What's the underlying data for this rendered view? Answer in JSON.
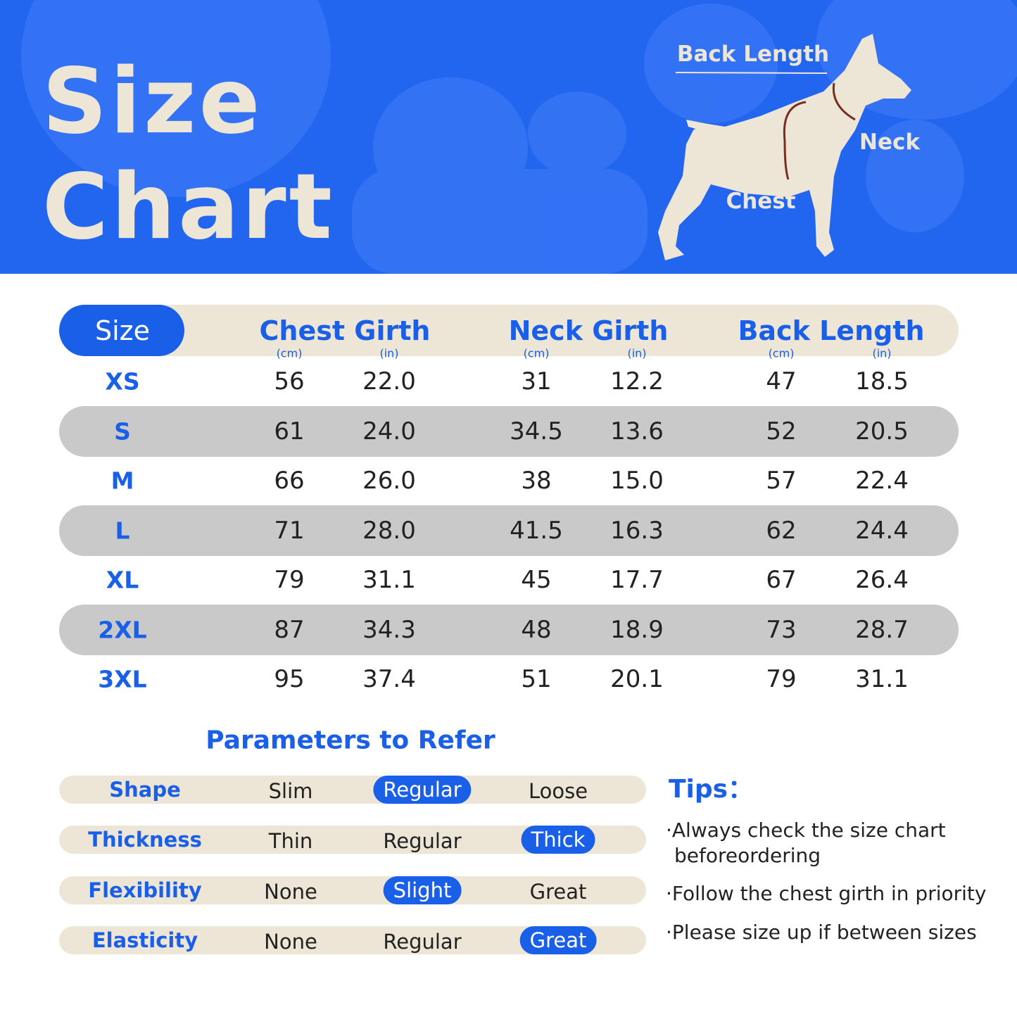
{
  "header": {
    "title_lines": [
      "Size",
      "Chart"
    ]
  },
  "diagram": {
    "back_length": "Back Length",
    "neck": "Neck",
    "chest": "Chest"
  },
  "table": {
    "size_header": "Size",
    "groups": [
      {
        "title": "Chest Girth",
        "units": [
          "(cm)",
          "(in)"
        ]
      },
      {
        "title": "Neck Girth",
        "units": [
          "(cm)",
          "(in)"
        ]
      },
      {
        "title": "Back Length",
        "units": [
          "(cm)",
          "(in)"
        ]
      }
    ],
    "rows": [
      [
        "XS",
        "56",
        "22.0",
        "31",
        "12.2",
        "47",
        "18.5"
      ],
      [
        "S",
        "61",
        "24.0",
        "34.5",
        "13.6",
        "52",
        "20.5"
      ],
      [
        "M",
        "66",
        "26.0",
        "38",
        "15.0",
        "57",
        "22.4"
      ],
      [
        "L",
        "71",
        "28.0",
        "41.5",
        "16.3",
        "62",
        "24.4"
      ],
      [
        "XL",
        "79",
        "31.1",
        "45",
        "17.7",
        "67",
        "26.4"
      ],
      [
        "2XL",
        "87",
        "34.3",
        "48",
        "18.9",
        "73",
        "28.7"
      ],
      [
        "3XL",
        "95",
        "37.4",
        "51",
        "20.1",
        "79",
        "31.1"
      ]
    ]
  },
  "parameters": {
    "title": "Parameters to Refer",
    "rows": [
      {
        "label": "Shape",
        "options": [
          "Slim",
          "Regular",
          "Loose"
        ],
        "selected": 1
      },
      {
        "label": "Thickness",
        "options": [
          "Thin",
          "Regular",
          "Thick"
        ],
        "selected": 2
      },
      {
        "label": "Flexibility",
        "options": [
          "None",
          "Slight",
          "Great"
        ],
        "selected": 1
      },
      {
        "label": "Elasticity",
        "options": [
          "None",
          "Regular",
          "Great"
        ],
        "selected": 2
      }
    ]
  },
  "tips": {
    "title": "Tips：",
    "items": [
      "·Always check the size chart beforeordering",
      "·Follow the chest girth in priority",
      "·Please size up if between sizes"
    ]
  }
}
